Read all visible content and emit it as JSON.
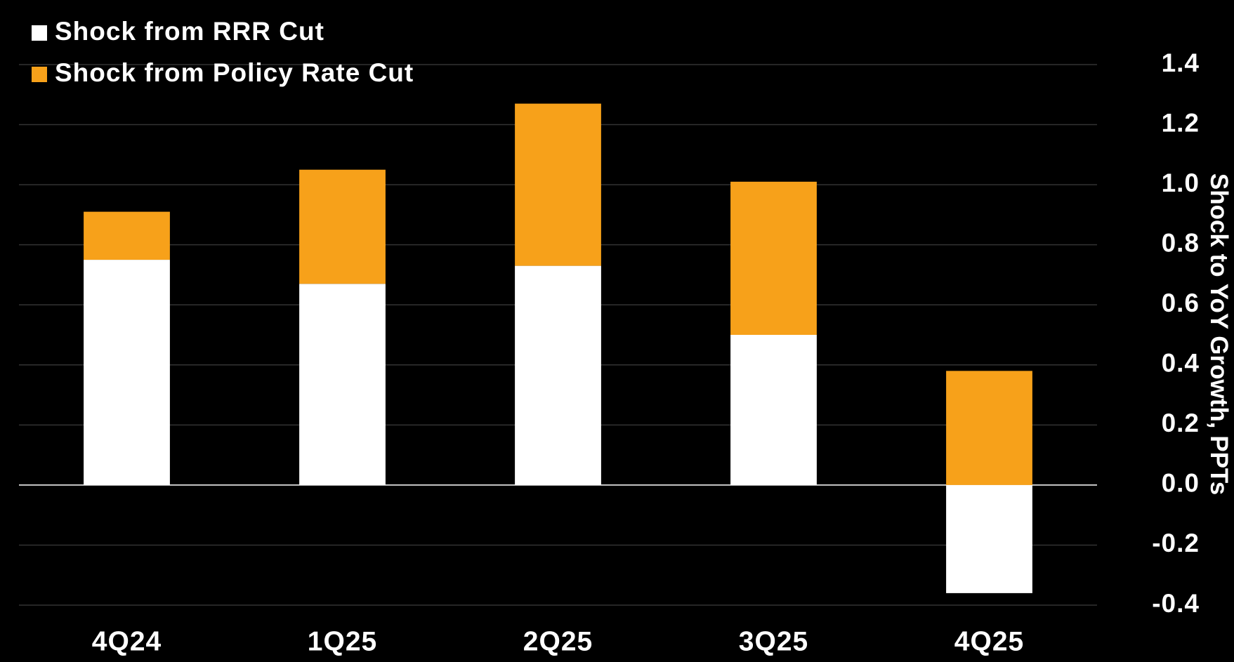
{
  "chart_data": {
    "type": "stacked_bar",
    "y_axis_label": "Shock to YoY Growth, PPTs",
    "categories": [
      "4Q24",
      "1Q25",
      "2Q25",
      "3Q25",
      "4Q25"
    ],
    "series": [
      {
        "name": "Shock from RRR Cut",
        "color": "#ffffff",
        "values": [
          0.75,
          0.67,
          0.73,
          0.5,
          -0.36
        ]
      },
      {
        "name": "Shock from Policy Rate Cut",
        "color": "#f7a11a",
        "values": [
          0.16,
          0.38,
          0.54,
          0.51,
          0.38
        ]
      }
    ],
    "ylim": [
      -0.4,
      1.4
    ],
    "yticks": [
      {
        "value": -0.4,
        "label": "-0.4"
      },
      {
        "value": -0.2,
        "label": "-0.2"
      },
      {
        "value": 0,
        "label": "0.0"
      },
      0.2,
      0.4,
      0.6,
      0.8,
      {
        "value": 1,
        "label": "1.0"
      },
      1.2,
      1.4
    ],
    "y_axis_side": "right",
    "grid": true,
    "legend": "top-left"
  }
}
